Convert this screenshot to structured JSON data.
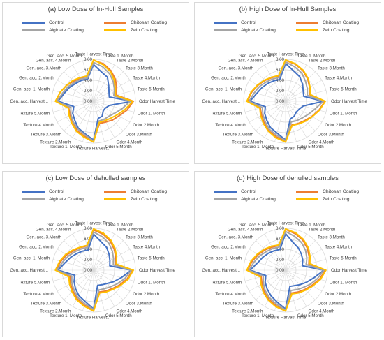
{
  "chart_data": [
    {
      "type": "radar",
      "title": "(a) Low Dose of In-Hull Samples",
      "categories": [
        "Taste Harvest Time",
        "Taste 1. Month",
        "Taste 2.Month",
        "Taste 3.Month",
        "Taste 4.Month",
        "Taste 5.Month",
        "Odor Harvest Time",
        "Odor 1. Month",
        "Odor 2.Month",
        "Odor 3.Month",
        "Odor 4.Month",
        "Odor 5.Month",
        "Texture Harvest...",
        "Texture 1. Month",
        "Texture 2.Month",
        "Texture 3.Month",
        "Texture 4.Month",
        "Texture 5.Month",
        "Gen. acc. Harvest...",
        "Gen. acc. 1. Month",
        "Gen. acc. 2.Month",
        "Gen. acc. 3.Month",
        "Gen. acc. 4.Month",
        "Gen. acc. 5.Month"
      ],
      "rlim": [
        0,
        8
      ],
      "ticks": [
        "0.00",
        "2.00",
        "4.00",
        "6.00",
        "8.00"
      ],
      "legend_position": "top",
      "series": [
        {
          "name": "Control",
          "color": "#4472c4",
          "values": [
            7.0,
            5.8,
            5.3,
            4.1,
            3.4,
            3.1,
            7.4,
            3.1,
            2.6,
            2.6,
            3.3,
            3.4,
            7.4,
            6.4,
            5.9,
            5.1,
            4.6,
            3.9,
            6.8,
            5.8,
            5.3,
            4.8,
            4.6,
            4.4
          ]
        },
        {
          "name": "Chitosan Coating",
          "color": "#ed7d31",
          "values": [
            7.8,
            7.4,
            6.7,
            5.9,
            5.1,
            4.5,
            7.6,
            6.6,
            5.6,
            5.1,
            4.6,
            4.4,
            7.6,
            6.9,
            6.4,
            5.6,
            5.2,
            4.9,
            7.2,
            6.6,
            6.0,
            5.4,
            5.1,
            4.9
          ]
        },
        {
          "name": "Alginate Coating",
          "color": "#a5a5a5",
          "values": [
            7.4,
            6.8,
            6.1,
            5.3,
            4.6,
            4.0,
            7.0,
            5.6,
            4.6,
            4.1,
            4.0,
            3.9,
            7.6,
            6.6,
            6.1,
            5.5,
            5.0,
            4.5,
            7.0,
            6.1,
            5.6,
            5.1,
            4.9,
            4.6
          ]
        },
        {
          "name": "Zein Coating",
          "color": "#ffc000",
          "values": [
            7.9,
            7.2,
            6.5,
            5.6,
            4.8,
            4.3,
            7.5,
            6.2,
            5.2,
            4.6,
            4.3,
            4.2,
            7.8,
            7.1,
            6.6,
            5.9,
            5.4,
            5.0,
            7.3,
            6.6,
            6.0,
            5.6,
            5.2,
            5.0
          ]
        }
      ]
    },
    {
      "type": "radar",
      "title": "(b) High Dose of In-Hull Samples",
      "categories": [
        "Taste Harvest Time",
        "Taste 1. Month",
        "Taste 2.Month",
        "Taste 3.Month",
        "Taste 4.Month",
        "Taste 5.Month",
        "Odor Harvest Time",
        "Odor 1. Month",
        "Odor 2.Month",
        "Odor 3.Month",
        "Odor 4.Month",
        "Odor 5.Month",
        "Texture Harvest Time",
        "Texture 1. Month",
        "Texture 2.Month",
        "Texture 3.Month",
        "Texture 4.Month",
        "Texture 5.Month",
        "Gen. acc. Harvest...",
        "Gen. acc. 1. Month",
        "Gen. acc. 2.Month",
        "Gen. acc. 3.Month",
        "Gen. acc. 4.Month",
        "Gen. acc. 5.Month"
      ],
      "rlim": [
        0,
        8
      ],
      "ticks": [
        "0.00",
        "2.00",
        "4.00",
        "6.00",
        "8.00"
      ],
      "legend_position": "top",
      "series": [
        {
          "name": "Control",
          "color": "#4472c4",
          "values": [
            7.2,
            6.0,
            5.4,
            4.6,
            3.9,
            3.6,
            7.2,
            3.5,
            3.0,
            2.9,
            3.3,
            3.5,
            7.4,
            6.3,
            5.8,
            5.1,
            4.6,
            4.0,
            6.8,
            5.7,
            5.2,
            4.8,
            4.5,
            4.3
          ]
        },
        {
          "name": "Chitosan Coating",
          "color": "#ed7d31",
          "values": [
            7.8,
            7.3,
            6.7,
            6.0,
            5.3,
            4.8,
            7.5,
            6.6,
            5.8,
            5.2,
            4.9,
            4.7,
            7.7,
            7.0,
            6.5,
            5.8,
            5.3,
            5.0,
            7.3,
            6.7,
            6.1,
            5.6,
            5.2,
            5.0
          ]
        },
        {
          "name": "Alginate Coating",
          "color": "#a5a5a5",
          "values": [
            7.5,
            6.8,
            6.2,
            5.4,
            4.8,
            4.3,
            7.2,
            5.8,
            5.0,
            4.5,
            4.3,
            4.1,
            7.5,
            6.7,
            6.2,
            5.5,
            5.0,
            4.6,
            7.0,
            6.2,
            5.7,
            5.2,
            4.9,
            4.7
          ]
        },
        {
          "name": "Zein Coating",
          "color": "#ffc000",
          "values": [
            7.9,
            7.4,
            6.8,
            6.1,
            5.4,
            4.9,
            7.6,
            6.7,
            5.9,
            5.4,
            5.0,
            4.8,
            7.8,
            7.2,
            6.6,
            6.0,
            5.5,
            5.1,
            7.4,
            6.8,
            6.2,
            5.7,
            5.3,
            5.1
          ]
        }
      ]
    },
    {
      "type": "radar",
      "title": "(c) Low Dose of dehulled samples",
      "categories": [
        "Taste Harvest Time",
        "Taste 1. Month",
        "Taste 2.Month",
        "Taste 3.Month",
        "Taste 4.Month",
        "Taste 5.Month",
        "Odor Harvest Time",
        "Odor 1. Month",
        "Odor 2.Month",
        "Odor 3.Month",
        "Odor 4.Month",
        "Odor 5.Month",
        "Texture Harvest...",
        "Texture 1. Month",
        "Texture 2.Month",
        "Texture 3.Month",
        "Texture 4.Month",
        "Texture 5.Month",
        "Gen. acc. Harvest...",
        "Gen. acc. 1. Month",
        "Gen. acc. 2.Month",
        "Gen. acc. 3.Month",
        "Gen. acc. 4.Month",
        "Gen. acc. 5.Month"
      ],
      "rlim": [
        0,
        8
      ],
      "ticks": [
        "0.00",
        "2.00",
        "4.00",
        "6.00",
        "8.00"
      ],
      "legend_position": "top",
      "series": [
        {
          "name": "Control",
          "color": "#4472c4",
          "values": [
            6.9,
            5.6,
            5.0,
            4.2,
            3.6,
            3.2,
            7.2,
            5.5,
            4.4,
            3.6,
            3.2,
            3.0,
            7.4,
            6.2,
            5.6,
            4.9,
            4.3,
            3.7,
            6.8,
            5.6,
            5.0,
            4.5,
            4.2,
            4.0
          ]
        },
        {
          "name": "Chitosan Coating",
          "color": "#ed7d31",
          "values": [
            7.7,
            7.1,
            6.4,
            5.6,
            4.9,
            4.3,
            7.5,
            6.6,
            5.7,
            5.0,
            4.6,
            4.3,
            7.6,
            6.9,
            6.3,
            5.6,
            5.1,
            4.7,
            7.2,
            6.5,
            5.9,
            5.3,
            5.0,
            4.8
          ]
        },
        {
          "name": "Alginate Coating",
          "color": "#a5a5a5",
          "values": [
            7.3,
            6.6,
            5.9,
            5.1,
            4.4,
            3.9,
            7.2,
            6.2,
            5.2,
            4.5,
            4.1,
            3.9,
            7.5,
            6.6,
            6.0,
            5.3,
            4.8,
            4.3,
            7.0,
            6.1,
            5.5,
            5.0,
            4.7,
            4.5
          ]
        },
        {
          "name": "Zein Coating",
          "color": "#ffc000",
          "values": [
            7.9,
            7.3,
            6.6,
            5.8,
            5.1,
            4.5,
            7.6,
            6.8,
            5.9,
            5.2,
            4.8,
            4.5,
            7.8,
            7.1,
            6.5,
            5.8,
            5.3,
            4.9,
            7.3,
            6.7,
            6.1,
            5.5,
            5.1,
            4.9
          ]
        }
      ]
    },
    {
      "type": "radar",
      "title": "(d) High Dose of  dehulled samples",
      "categories": [
        "Taste Harvest Time",
        "Taste 1. Month",
        "Taste 2.Month",
        "Taste 3.Month",
        "Taste 4.Month",
        "Taste 5.Month",
        "Odor Harvest Time",
        "Odor 1. Month",
        "Odor 2.Month",
        "Odor 3.Month",
        "Odor 4.Month",
        "Odor 5.Month",
        "Texture Harvest Time",
        "Texture 1. Month",
        "Texture 2.Month",
        "Texture 3.Month",
        "Texture 4.Month",
        "Texture 5.Month",
        "Gen. acc. Harvest...",
        "Gen. acc. 1. Month",
        "Gen. acc. 2.Month",
        "Gen. acc. 3.Month",
        "Gen. acc. 4.Month",
        "Gen. acc. 5.Month"
      ],
      "rlim": [
        0,
        8
      ],
      "ticks": [
        "0.00",
        "2.00",
        "4.00",
        "6.00",
        "8.00"
      ],
      "legend_position": "top",
      "series": [
        {
          "name": "Control",
          "color": "#4472c4",
          "values": [
            7.0,
            5.5,
            4.9,
            4.3,
            3.8,
            3.3,
            7.3,
            5.6,
            4.6,
            3.9,
            3.4,
            3.2,
            7.4,
            6.3,
            5.6,
            5.0,
            4.5,
            3.9,
            6.8,
            5.5,
            5.0,
            4.6,
            4.3,
            4.1
          ]
        },
        {
          "name": "Chitosan Coating",
          "color": "#ed7d31",
          "values": [
            7.8,
            7.2,
            6.6,
            5.9,
            5.2,
            4.6,
            7.6,
            6.7,
            5.8,
            5.2,
            4.8,
            4.5,
            7.7,
            7.0,
            6.4,
            5.8,
            5.2,
            4.8,
            7.3,
            6.6,
            6.0,
            5.5,
            5.1,
            4.9
          ]
        },
        {
          "name": "Alginate Coating",
          "color": "#a5a5a5",
          "values": [
            7.4,
            6.7,
            6.1,
            5.4,
            4.7,
            4.1,
            7.3,
            6.3,
            5.4,
            4.7,
            4.3,
            4.0,
            7.6,
            6.7,
            6.1,
            5.5,
            4.9,
            4.4,
            7.0,
            6.2,
            5.6,
            5.1,
            4.8,
            4.6
          ]
        },
        {
          "name": "Zein Coating",
          "color": "#ffc000",
          "values": [
            7.9,
            7.4,
            6.8,
            6.1,
            5.4,
            4.8,
            7.7,
            6.9,
            6.0,
            5.4,
            5.0,
            4.7,
            7.8,
            7.2,
            6.6,
            6.0,
            5.4,
            5.0,
            7.4,
            6.8,
            6.2,
            5.7,
            5.3,
            5.0
          ]
        }
      ]
    }
  ]
}
